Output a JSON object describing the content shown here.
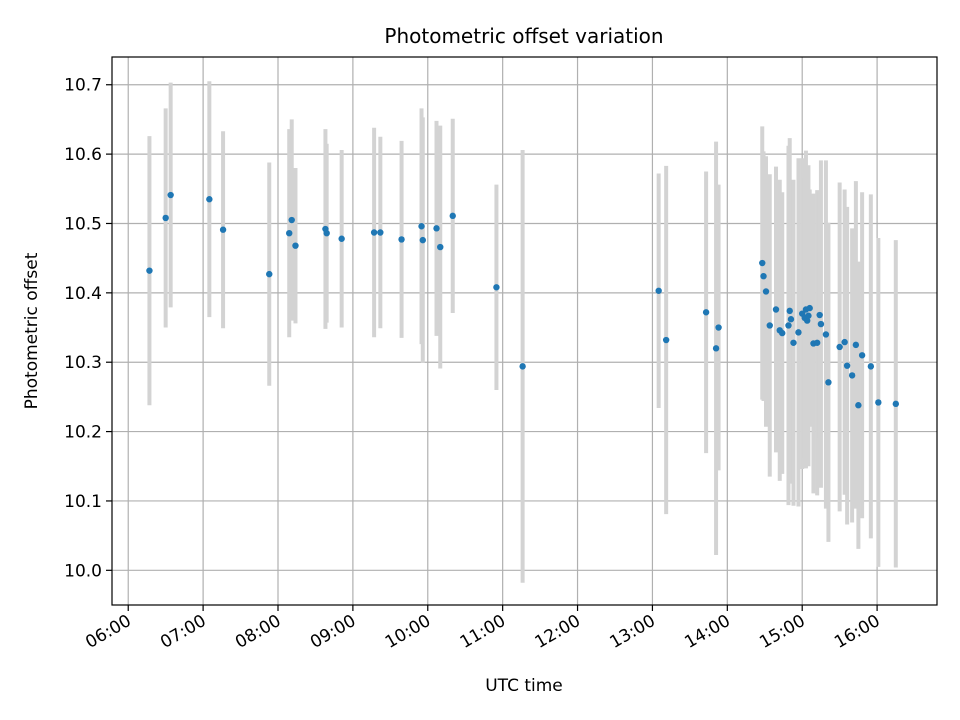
{
  "chart_data": {
    "type": "scatter",
    "title": "Photometric offset variation",
    "xlabel": "UTC time",
    "ylabel": "Photometric offset",
    "grid": true,
    "xlim": [
      "05:47",
      "16:48"
    ],
    "ylim": [
      9.95,
      10.74
    ],
    "x_ticks": [
      "06:00",
      "07:00",
      "08:00",
      "09:00",
      "10:00",
      "11:00",
      "12:00",
      "13:00",
      "14:00",
      "15:00",
      "16:00"
    ],
    "y_ticks": [
      10.0,
      10.1,
      10.2,
      10.3,
      10.4,
      10.5,
      10.6,
      10.7
    ],
    "colors": {
      "marker": "#1f77b4",
      "errorbar": "#d3d3d3",
      "grid": "#b0b0b0"
    },
    "series": [
      {
        "x": [
          "06:17",
          "06:30",
          "06:34",
          "07:05",
          "07:16",
          "07:53",
          "08:09",
          "08:11",
          "08:14",
          "08:38",
          "08:39",
          "08:51",
          "09:17",
          "09:22",
          "09:39",
          "09:55",
          "09:56",
          "10:07",
          "10:10",
          "10:20",
          "10:55",
          "11:16",
          "13:05",
          "13:11",
          "13:43",
          "13:51",
          "13:53",
          "14:28",
          "14:29",
          "14:31",
          "14:34",
          "14:39",
          "14:42",
          "14:44",
          "14:49",
          "14:50",
          "14:51",
          "14:53",
          "14:57",
          "15:00",
          "15:02",
          "15:03",
          "15:04",
          "15:05",
          "15:06",
          "15:09",
          "15:12",
          "15:14",
          "15:15",
          "15:19",
          "15:21",
          "15:30",
          "15:34",
          "15:36",
          "15:40",
          "15:43",
          "15:45",
          "15:48",
          "15:55",
          "16:01",
          "16:15"
        ],
        "y": [
          10.432,
          10.508,
          10.541,
          10.535,
          10.491,
          10.427,
          10.486,
          10.505,
          10.468,
          10.492,
          10.486,
          10.478,
          10.487,
          10.487,
          10.477,
          10.496,
          10.476,
          10.493,
          10.466,
          10.511,
          10.408,
          10.294,
          10.403,
          10.332,
          10.372,
          10.32,
          10.35,
          10.443,
          10.424,
          10.402,
          10.353,
          10.376,
          10.346,
          10.342,
          10.353,
          10.374,
          10.362,
          10.328,
          10.343,
          10.37,
          10.364,
          10.376,
          10.36,
          10.367,
          10.378,
          10.327,
          10.328,
          10.368,
          10.355,
          10.34,
          10.271,
          10.322,
          10.329,
          10.295,
          10.281,
          10.325,
          10.238,
          10.31,
          10.294,
          10.242,
          10.24
        ],
        "yerr": [
          0.194,
          0.158,
          0.162,
          0.17,
          0.142,
          0.161,
          0.15,
          0.145,
          0.112,
          0.144,
          0.129,
          0.128,
          0.151,
          0.138,
          0.142,
          0.17,
          0.177,
          0.155,
          0.175,
          0.14,
          0.148,
          0.312,
          0.169,
          0.251,
          0.203,
          0.298,
          0.206,
          0.197,
          0.18,
          0.195,
          0.218,
          0.206,
          0.217,
          0.203,
          0.259,
          0.249,
          0.179,
          0.235,
          0.251,
          0.224,
          0.202,
          0.229,
          0.188,
          0.217,
          0.171,
          0.216,
          0.22,
          0.178,
          0.236,
          0.251,
          0.23,
          0.237,
          0.22,
          0.229,
          0.212,
          0.236,
          0.207,
          0.235,
          0.248,
          0.237,
          0.236
        ]
      }
    ]
  }
}
